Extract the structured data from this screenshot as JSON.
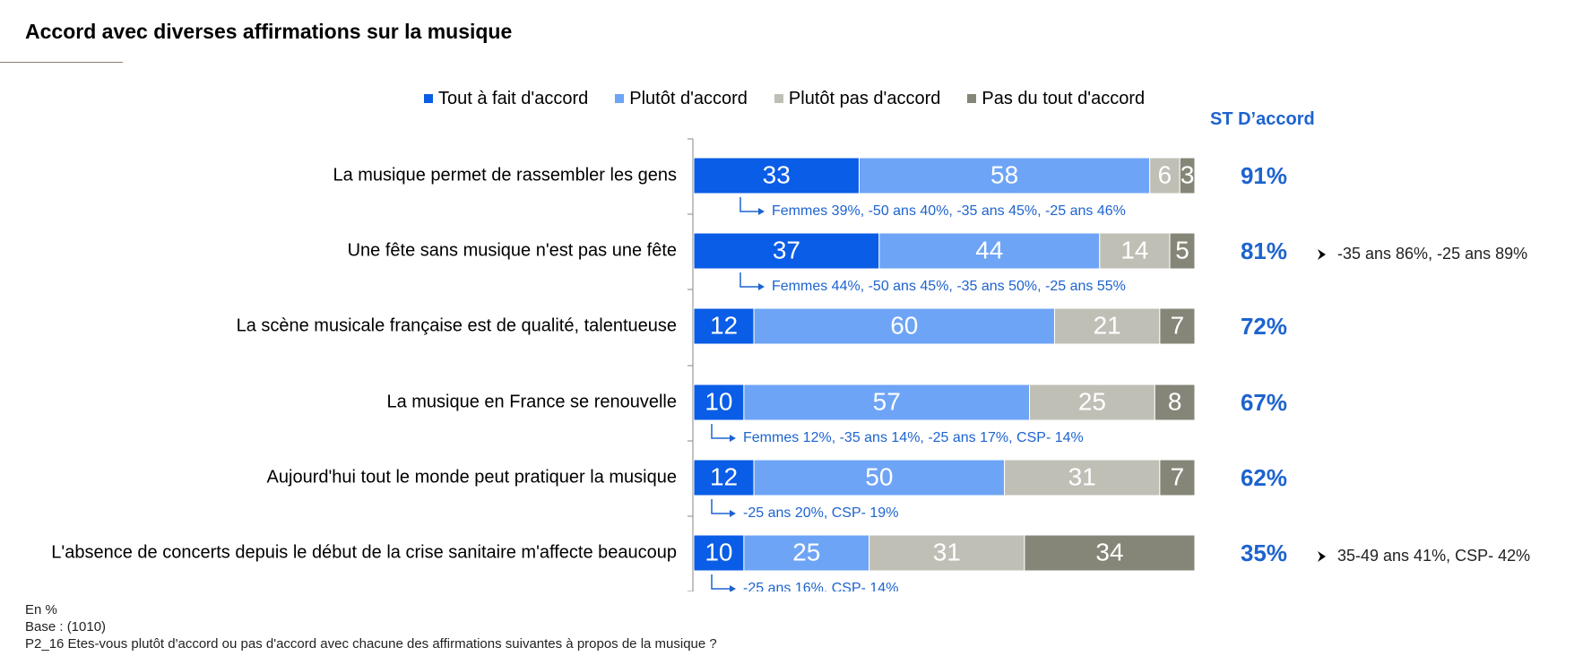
{
  "title": "Accord avec diverses affirmations sur la musique",
  "st_header": "ST D’accord",
  "colors": {
    "tout_a_fait": "#0a5de6",
    "plutot": "#6ea4f6",
    "plutot_pas": "#c0bfb6",
    "pas_du_tout": "#868678",
    "accent_text": "#1d63cf"
  },
  "legend": [
    {
      "label": "Tout à fait d'accord",
      "color": "#0a5de6"
    },
    {
      "label": "Plutôt d'accord",
      "color": "#6ea4f6"
    },
    {
      "label": "Plutôt pas d'accord",
      "color": "#c0bfb6"
    },
    {
      "label": "Pas du tout d'accord",
      "color": "#868678"
    }
  ],
  "footer": {
    "line1": "En %",
    "line2": "Base : (1010)",
    "line3": "P2_16 Etes-vous plutôt d'accord ou pas d'accord avec chacune des affirmations suivantes à propos de la musique ?"
  },
  "chart_data": {
    "type": "bar",
    "orientation": "horizontal",
    "stacked": true,
    "xlim": [
      0,
      100
    ],
    "categories": [
      "La musique permet de rassembler les gens",
      "Une fête sans musique n'est pas une fête",
      "La scène musicale française est de qualité, talentueuse",
      "La musique en France se renouvelle",
      "Aujourd'hui tout le monde peut pratiquer la musique",
      "L'absence de concerts depuis le début de la crise sanitaire m'affecte beaucoup"
    ],
    "series": [
      {
        "name": "Tout à fait d'accord",
        "values": [
          33,
          37,
          12,
          10,
          12,
          10
        ]
      },
      {
        "name": "Plutôt d'accord",
        "values": [
          58,
          44,
          60,
          57,
          50,
          25
        ]
      },
      {
        "name": "Plutôt pas d'accord",
        "values": [
          6,
          14,
          21,
          25,
          31,
          31
        ]
      },
      {
        "name": "Pas du tout d'accord",
        "values": [
          3,
          5,
          7,
          8,
          7,
          34
        ]
      }
    ],
    "st_accord": [
      "91%",
      "81%",
      "72%",
      "67%",
      "62%",
      "35%"
    ],
    "subgroup_notes": [
      "Femmes 39%, -50 ans 40%, -35 ans 45%, -25 ans 46%",
      "Femmes 44%, -50 ans 45%, -35 ans 50%, -25 ans 55%",
      "",
      "Femmes 12%, -35 ans 14%, -25 ans 17%, CSP- 14%",
      "-25 ans 20%, CSP- 19%",
      "-25 ans 16%, CSP- 14%"
    ],
    "side_notes": [
      "",
      "-35 ans 86%, -25 ans 89%",
      "",
      "",
      "",
      "35-49 ans  41%, CSP- 42%"
    ]
  }
}
